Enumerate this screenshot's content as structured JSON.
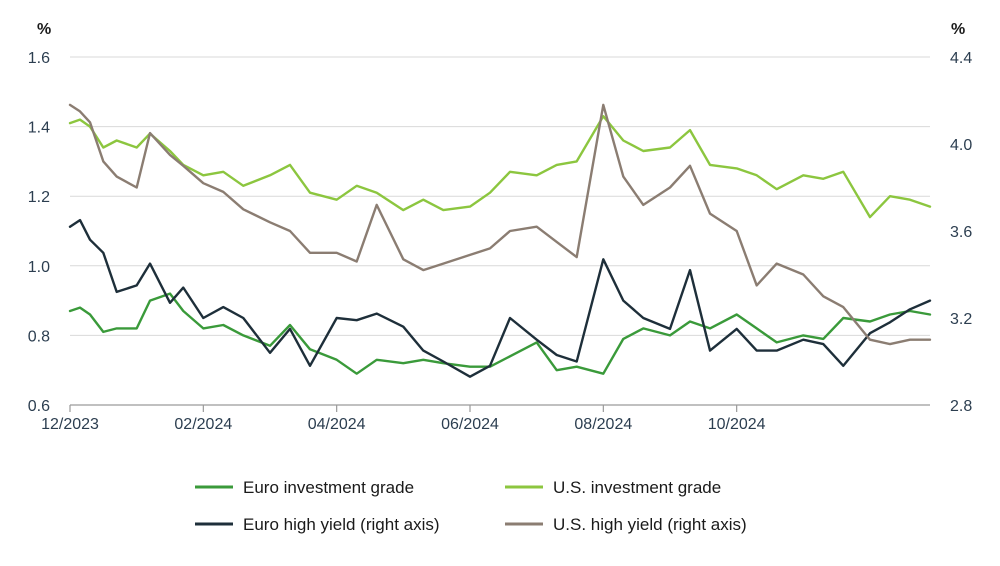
{
  "chart_data": {
    "type": "line",
    "left_axis": {
      "unit": "%",
      "ylim": [
        0.6,
        1.6
      ],
      "ticks": [
        "0.6",
        "0.8",
        "1.0",
        "1.2",
        "1.4",
        "1.6"
      ]
    },
    "right_axis": {
      "unit": "%",
      "ylim": [
        2.8,
        4.4
      ],
      "ticks": [
        "2.8",
        "3.2",
        "3.6",
        "4.0",
        "4.4"
      ]
    },
    "x_axis": {
      "range_months": [
        0,
        12.9
      ],
      "ticks": [
        {
          "label": "12/2023",
          "month": 0
        },
        {
          "label": "02/2024",
          "month": 2
        },
        {
          "label": "04/2024",
          "month": 4
        },
        {
          "label": "06/2024",
          "month": 6
        },
        {
          "label": "08/2024",
          "month": 8
        },
        {
          "label": "10/2024",
          "month": 10
        }
      ]
    },
    "grid": "horizontal",
    "legend_position": "bottom",
    "series": [
      {
        "name": "Euro investment grade",
        "axis": "left",
        "color": "#3a9a3a",
        "x": [
          0,
          0.15,
          0.3,
          0.5,
          0.7,
          1.0,
          1.2,
          1.5,
          1.7,
          2.0,
          2.3,
          2.6,
          3.0,
          3.3,
          3.6,
          4.0,
          4.3,
          4.6,
          5.0,
          5.3,
          5.6,
          6.0,
          6.3,
          6.6,
          7.0,
          7.3,
          7.6,
          8.0,
          8.3,
          8.6,
          9.0,
          9.3,
          9.6,
          10.0,
          10.3,
          10.6,
          11.0,
          11.3,
          11.6,
          12.0,
          12.3,
          12.6,
          12.9
        ],
        "y": [
          0.87,
          0.88,
          0.86,
          0.81,
          0.82,
          0.82,
          0.9,
          0.92,
          0.87,
          0.82,
          0.83,
          0.8,
          0.77,
          0.83,
          0.76,
          0.73,
          0.69,
          0.73,
          0.72,
          0.73,
          0.72,
          0.71,
          0.71,
          0.74,
          0.78,
          0.7,
          0.71,
          0.69,
          0.79,
          0.82,
          0.8,
          0.84,
          0.82,
          0.86,
          0.82,
          0.78,
          0.8,
          0.79,
          0.85,
          0.84,
          0.86,
          0.87,
          0.86
        ]
      },
      {
        "name": "U.S. investment grade",
        "axis": "left",
        "color": "#8cc63f",
        "x": [
          0,
          0.15,
          0.3,
          0.5,
          0.7,
          1.0,
          1.2,
          1.5,
          1.7,
          2.0,
          2.3,
          2.6,
          3.0,
          3.3,
          3.6,
          4.0,
          4.3,
          4.6,
          5.0,
          5.3,
          5.6,
          6.0,
          6.3,
          6.6,
          7.0,
          7.3,
          7.6,
          8.0,
          8.3,
          8.6,
          9.0,
          9.3,
          9.6,
          10.0,
          10.3,
          10.6,
          11.0,
          11.3,
          11.6,
          12.0,
          12.3,
          12.6,
          12.9
        ],
        "y": [
          1.41,
          1.42,
          1.4,
          1.34,
          1.36,
          1.34,
          1.38,
          1.33,
          1.29,
          1.26,
          1.27,
          1.23,
          1.26,
          1.29,
          1.21,
          1.19,
          1.23,
          1.21,
          1.16,
          1.19,
          1.16,
          1.17,
          1.21,
          1.27,
          1.26,
          1.29,
          1.3,
          1.43,
          1.36,
          1.33,
          1.34,
          1.39,
          1.29,
          1.28,
          1.26,
          1.22,
          1.26,
          1.25,
          1.27,
          1.14,
          1.2,
          1.19,
          1.17
        ]
      },
      {
        "name": "Euro high yield (right axis)",
        "axis": "right",
        "color": "#1e2f3a",
        "x": [
          0,
          0.15,
          0.3,
          0.5,
          0.7,
          1.0,
          1.2,
          1.5,
          1.7,
          2.0,
          2.3,
          2.6,
          3.0,
          3.3,
          3.6,
          4.0,
          4.3,
          4.6,
          5.0,
          5.3,
          5.6,
          6.0,
          6.3,
          6.6,
          7.0,
          7.3,
          7.6,
          8.0,
          8.3,
          8.6,
          9.0,
          9.3,
          9.6,
          10.0,
          10.3,
          10.6,
          11.0,
          11.3,
          11.6,
          12.0,
          12.3,
          12.6,
          12.9
        ],
        "y": [
          3.62,
          3.65,
          3.56,
          3.5,
          3.32,
          3.35,
          3.45,
          3.27,
          3.34,
          3.2,
          3.25,
          3.2,
          3.04,
          3.15,
          2.98,
          3.2,
          3.19,
          3.22,
          3.16,
          3.05,
          3.0,
          2.93,
          2.98,
          3.2,
          3.1,
          3.03,
          3.0,
          3.47,
          3.28,
          3.2,
          3.15,
          3.42,
          3.05,
          3.15,
          3.05,
          3.05,
          3.1,
          3.08,
          2.98,
          3.13,
          3.18,
          3.24,
          3.28
        ]
      },
      {
        "name": "U.S. high yield (right axis)",
        "axis": "right",
        "color": "#8b7d72",
        "x": [
          0,
          0.15,
          0.3,
          0.5,
          0.7,
          1.0,
          1.2,
          1.5,
          1.7,
          2.0,
          2.3,
          2.6,
          3.0,
          3.3,
          3.6,
          4.0,
          4.3,
          4.6,
          5.0,
          5.3,
          5.6,
          6.0,
          6.3,
          6.6,
          7.0,
          7.3,
          7.6,
          8.0,
          8.3,
          8.6,
          9.0,
          9.3,
          9.6,
          10.0,
          10.3,
          10.6,
          11.0,
          11.3,
          11.6,
          12.0,
          12.3,
          12.6,
          12.9
        ],
        "y": [
          4.18,
          4.15,
          4.1,
          3.92,
          3.85,
          3.8,
          4.05,
          3.95,
          3.9,
          3.82,
          3.78,
          3.7,
          3.64,
          3.6,
          3.5,
          3.5,
          3.46,
          3.72,
          3.47,
          3.42,
          3.45,
          3.49,
          3.52,
          3.6,
          3.62,
          3.55,
          3.48,
          4.18,
          3.85,
          3.72,
          3.8,
          3.9,
          3.68,
          3.6,
          3.35,
          3.45,
          3.4,
          3.3,
          3.25,
          3.1,
          3.08,
          3.1,
          3.1
        ]
      }
    ]
  }
}
